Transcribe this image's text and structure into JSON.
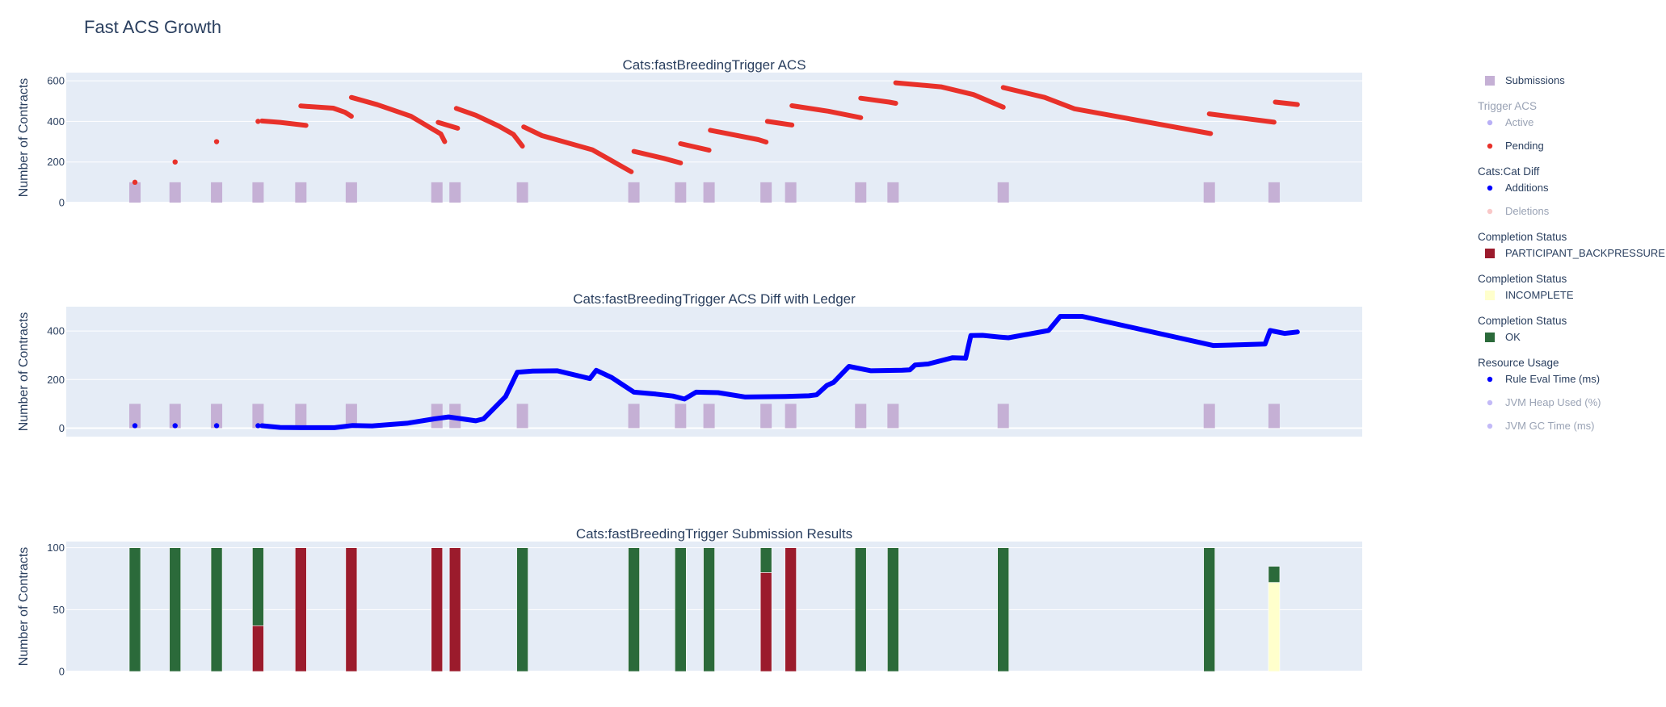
{
  "title": "Fast ACS Growth",
  "colors": {
    "plot_bg": "#e5ecf6",
    "grid": "#ffffff",
    "submissions": "#c5b0d5",
    "pending": "#e8312a",
    "additions": "#0000ff",
    "backpressure": "#9b1b2c",
    "incomplete": "#ffffcc",
    "ok": "#2b6a3a",
    "active": "#8a7cf0",
    "deletions": "#f5a3a3",
    "jvm": "#9b8cf2"
  },
  "legend": {
    "groups": [
      {
        "title": "",
        "items": [
          {
            "label": "Submissions",
            "symbol": "square",
            "color": "#c5b0d5",
            "dim": false,
            "icon": "square-marker-icon"
          }
        ]
      },
      {
        "title": "Trigger ACS",
        "dim": true,
        "items": [
          {
            "label": "Active",
            "symbol": "dot",
            "color": "#8a7cf0",
            "dim": true,
            "icon": "dot-marker-icon"
          },
          {
            "label": "Pending",
            "symbol": "dot",
            "color": "#e8312a",
            "dim": false,
            "icon": "dot-marker-icon"
          }
        ]
      },
      {
        "title": "Cats:Cat Diff",
        "items": [
          {
            "label": "Additions",
            "symbol": "dot",
            "color": "#0000ff",
            "dim": false,
            "icon": "dot-marker-icon"
          },
          {
            "label": "Deletions",
            "symbol": "dot",
            "color": "#f5a3a3",
            "dim": true,
            "icon": "dot-marker-icon"
          }
        ]
      },
      {
        "title": "Completion Status",
        "items": [
          {
            "label": "PARTICIPANT_BACKPRESSURE",
            "symbol": "square",
            "color": "#9b1b2c",
            "dim": false,
            "icon": "square-marker-icon"
          }
        ]
      },
      {
        "title": "Completion Status",
        "items": [
          {
            "label": "INCOMPLETE",
            "symbol": "square",
            "color": "#ffffcc",
            "dim": false,
            "icon": "square-marker-icon"
          }
        ]
      },
      {
        "title": "Completion Status",
        "items": [
          {
            "label": "OK",
            "symbol": "square",
            "color": "#2b6a3a",
            "dim": false,
            "icon": "square-marker-icon"
          }
        ]
      },
      {
        "title": "Resource Usage",
        "items": [
          {
            "label": "Rule Eval Time (ms)",
            "symbol": "dot",
            "color": "#0000ff",
            "dim": false,
            "icon": "dot-marker-icon"
          },
          {
            "label": "JVM Heap Used (%)",
            "symbol": "dot",
            "color": "#9b8cf2",
            "dim": true,
            "icon": "dot-marker-icon"
          },
          {
            "label": "JVM GC Time (ms)",
            "symbol": "dot",
            "color": "#9b8cf2",
            "dim": true,
            "icon": "dot-marker-icon"
          }
        ]
      }
    ]
  },
  "chart_data": [
    {
      "type": "scatter",
      "title": "Cats:fastBreedingTrigger ACS",
      "ylabel": "Number of Contracts",
      "xlabel": "",
      "xlim": [
        0,
        100
      ],
      "ylim": [
        0,
        640
      ],
      "yticks": [
        0,
        200,
        400,
        600
      ],
      "grid": true,
      "submissions": {
        "name": "Submissions",
        "height": 100,
        "x": [
          5.3,
          8.4,
          11.6,
          14.8,
          18.1,
          22.0,
          28.6,
          30.0,
          35.2,
          43.8,
          47.4,
          49.6,
          54.0,
          55.9,
          61.3,
          63.8,
          72.3,
          88.2,
          93.2
        ]
      },
      "series": [
        {
          "name": "Pending",
          "mode": "markers",
          "points": [
            [
              5.3,
              100
            ],
            [
              8.4,
              200
            ],
            [
              11.6,
              300
            ],
            [
              14.8,
              400
            ]
          ]
        },
        {
          "name": "Pending",
          "mode": "segments",
          "segments": [
            [
              [
                15.1,
                402
              ],
              [
                16.5,
                395
              ],
              [
                18.5,
                380
              ]
            ],
            [
              [
                18.1,
                476
              ],
              [
                20.6,
                465
              ],
              [
                21.5,
                445
              ],
              [
                22.0,
                425
              ]
            ],
            [
              [
                22.0,
                518
              ],
              [
                24.0,
                482
              ],
              [
                26.6,
                425
              ],
              [
                28.0,
                372
              ],
              [
                28.9,
                338
              ],
              [
                29.2,
                300
              ]
            ],
            [
              [
                28.7,
                395
              ],
              [
                30.2,
                366
              ]
            ],
            [
              [
                30.1,
                464
              ],
              [
                31.6,
                430
              ],
              [
                33.4,
                376
              ],
              [
                34.5,
                336
              ],
              [
                35.2,
                278
              ]
            ],
            [
              [
                35.3,
                373
              ],
              [
                36.7,
                330
              ],
              [
                40.6,
                260
              ],
              [
                43.6,
                152
              ]
            ],
            [
              [
                43.8,
                252
              ],
              [
                46.1,
                218
              ],
              [
                47.4,
                195
              ]
            ],
            [
              [
                47.4,
                290
              ],
              [
                49.6,
                258
              ]
            ],
            [
              [
                49.7,
                356
              ],
              [
                53.4,
                310
              ],
              [
                54.0,
                298
              ]
            ],
            [
              [
                54.1,
                400
              ],
              [
                56.0,
                382
              ]
            ],
            [
              [
                56.0,
                477
              ],
              [
                58.8,
                450
              ],
              [
                61.3,
                418
              ]
            ],
            [
              [
                61.3,
                514
              ],
              [
                63.5,
                495
              ],
              [
                64.0,
                489
              ]
            ],
            [
              [
                64.0,
                590
              ],
              [
                67.5,
                570
              ],
              [
                70.0,
                532
              ],
              [
                72.3,
                470
              ]
            ],
            [
              [
                72.3,
                567
              ],
              [
                75.5,
                518
              ],
              [
                77.8,
                462
              ],
              [
                88.3,
                340
              ]
            ],
            [
              [
                88.2,
                437
              ],
              [
                93.2,
                396
              ]
            ],
            [
              [
                93.3,
                495
              ],
              [
                95.0,
                483
              ]
            ]
          ]
        }
      ]
    },
    {
      "type": "scatter",
      "title": "Cats:fastBreedingTrigger ACS Diff with Ledger",
      "ylabel": "Number of Contracts",
      "xlabel": "",
      "xlim": [
        0,
        100
      ],
      "ylim": [
        -35,
        500
      ],
      "yticks": [
        0,
        200,
        400
      ],
      "grid": true,
      "submissions": {
        "name": "Submissions",
        "height": 100,
        "x": [
          5.3,
          8.4,
          11.6,
          14.8,
          18.1,
          22.0,
          28.6,
          30.0,
          35.2,
          43.8,
          47.4,
          49.6,
          54.0,
          55.9,
          61.3,
          63.8,
          72.3,
          88.2,
          93.2
        ]
      },
      "series": [
        {
          "name": "Additions",
          "mode": "markers",
          "points": [
            [
              5.3,
              10
            ],
            [
              8.4,
              10
            ],
            [
              11.6,
              10
            ],
            [
              14.8,
              10
            ]
          ]
        },
        {
          "name": "Additions",
          "mode": "line",
          "points": [
            [
              15.1,
              10
            ],
            [
              16.5,
              3
            ],
            [
              18.1,
              2
            ],
            [
              20.7,
              2
            ],
            [
              22.1,
              11
            ],
            [
              23.6,
              9
            ],
            [
              26.3,
              20
            ],
            [
              28.4,
              38
            ],
            [
              29.5,
              46
            ],
            [
              31.6,
              30
            ],
            [
              32.2,
              38
            ],
            [
              33.9,
              130
            ],
            [
              34.8,
              230
            ],
            [
              36.0,
              235
            ],
            [
              37.9,
              236
            ],
            [
              40.4,
              204
            ],
            [
              40.9,
              238
            ],
            [
              42.1,
              208
            ],
            [
              43.8,
              148
            ],
            [
              45.5,
              140
            ],
            [
              46.8,
              132
            ],
            [
              47.7,
              120
            ],
            [
              48.6,
              148
            ],
            [
              50.3,
              146
            ],
            [
              52.4,
              128
            ],
            [
              55.5,
              130
            ],
            [
              57.3,
              133
            ],
            [
              57.9,
              137
            ],
            [
              58.7,
              176
            ],
            [
              59.2,
              188
            ],
            [
              60.4,
              254
            ],
            [
              62.1,
              236
            ],
            [
              64.5,
              238
            ],
            [
              65.1,
              240
            ],
            [
              65.5,
              260
            ],
            [
              66.5,
              264
            ],
            [
              68.4,
              290
            ],
            [
              69.4,
              288
            ],
            [
              69.8,
              381
            ],
            [
              70.7,
              382
            ],
            [
              72.0,
              375
            ],
            [
              72.7,
              372
            ],
            [
              75.8,
              402
            ],
            [
              76.7,
              460
            ],
            [
              78.4,
              460
            ],
            [
              88.5,
              340
            ],
            [
              92.5,
              346
            ],
            [
              92.9,
              402
            ],
            [
              94.0,
              390
            ],
            [
              95.0,
              396
            ]
          ]
        }
      ]
    },
    {
      "type": "bar",
      "title": "Cats:fastBreedingTrigger Submission Results",
      "ylabel": "Number of Contracts",
      "xlabel": "",
      "xlim": [
        0,
        100
      ],
      "ylim": [
        0,
        105
      ],
      "yticks": [
        0,
        50,
        100
      ],
      "grid": true,
      "bars": [
        {
          "x": 5.3,
          "stack": [
            [
              "OK",
              100
            ]
          ]
        },
        {
          "x": 8.4,
          "stack": [
            [
              "OK",
              100
            ]
          ]
        },
        {
          "x": 11.6,
          "stack": [
            [
              "OK",
              100
            ]
          ]
        },
        {
          "x": 14.8,
          "stack": [
            [
              "PARTICIPANT_BACKPRESSURE",
              37
            ],
            [
              "OK",
              63
            ]
          ]
        },
        {
          "x": 18.1,
          "stack": [
            [
              "PARTICIPANT_BACKPRESSURE",
              100
            ]
          ]
        },
        {
          "x": 22.0,
          "stack": [
            [
              "PARTICIPANT_BACKPRESSURE",
              100
            ]
          ]
        },
        {
          "x": 28.6,
          "stack": [
            [
              "PARTICIPANT_BACKPRESSURE",
              100
            ]
          ]
        },
        {
          "x": 30.0,
          "stack": [
            [
              "PARTICIPANT_BACKPRESSURE",
              100
            ]
          ]
        },
        {
          "x": 35.2,
          "stack": [
            [
              "OK",
              100
            ]
          ]
        },
        {
          "x": 43.8,
          "stack": [
            [
              "OK",
              100
            ]
          ]
        },
        {
          "x": 47.4,
          "stack": [
            [
              "OK",
              100
            ]
          ]
        },
        {
          "x": 49.6,
          "stack": [
            [
              "OK",
              100
            ]
          ]
        },
        {
          "x": 54.0,
          "stack": [
            [
              "PARTICIPANT_BACKPRESSURE",
              80
            ],
            [
              "OK",
              20
            ]
          ]
        },
        {
          "x": 55.9,
          "stack": [
            [
              "PARTICIPANT_BACKPRESSURE",
              100
            ]
          ]
        },
        {
          "x": 61.3,
          "stack": [
            [
              "OK",
              100
            ]
          ]
        },
        {
          "x": 63.8,
          "stack": [
            [
              "OK",
              100
            ]
          ]
        },
        {
          "x": 72.3,
          "stack": [
            [
              "OK",
              100
            ]
          ]
        },
        {
          "x": 88.2,
          "stack": [
            [
              "OK",
              100
            ]
          ]
        },
        {
          "x": 93.2,
          "stack": [
            [
              "INCOMPLETE",
              72
            ],
            [
              "OK",
              13
            ]
          ]
        }
      ]
    }
  ]
}
